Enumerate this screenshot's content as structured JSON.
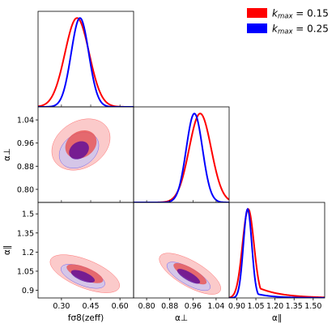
{
  "chart_data": {
    "type": "corner",
    "parameters": [
      {
        "id": "fs8",
        "label": "fσ8(zeff)",
        "range": [
          0.18,
          0.67
        ],
        "ticks": [
          "0.30",
          "0.45",
          "0.60"
        ],
        "tick_values": [
          0.3,
          0.45,
          0.6
        ]
      },
      {
        "id": "aperp",
        "label": "α⊥",
        "range": [
          0.755,
          1.085
        ],
        "ticks": [
          "0.80",
          "0.88",
          "0.96",
          "1.04"
        ],
        "tick_values": [
          0.8,
          0.88,
          0.96,
          1.04
        ]
      },
      {
        "id": "apar",
        "label": "α∥",
        "range": [
          0.84,
          1.59
        ],
        "ticks": [
          "0.90",
          "1.05",
          "1.20",
          "1.35",
          "1.50"
        ],
        "tick_values": [
          0.9,
          1.05,
          1.2,
          1.35,
          1.5
        ]
      }
    ],
    "y_ticks": {
      "aperp": [
        "1.04",
        "0.96",
        "0.88",
        "0.80"
      ],
      "apar": [
        "1.5",
        "1.35",
        "1.2",
        "1.05",
        "0.9"
      ]
    },
    "y_tick_values": {
      "aperp": [
        1.04,
        0.96,
        0.88,
        0.8
      ],
      "apar": [
        1.5,
        1.35,
        1.2,
        1.05,
        0.9
      ]
    },
    "series": [
      {
        "name": "k_max = 0.15",
        "legend_main": "k",
        "legend_sub": "max",
        "legend_value": " = 0.15",
        "color": "#ff0000",
        "fill_outer": "#fbc4c4",
        "fill_inner": "#e85858",
        "marginals": {
          "fs8": {
            "mean": 0.38,
            "sigma": 0.062
          },
          "aperp": {
            "mean": 0.985,
            "sigma": 0.038
          },
          "apar": {
            "mean": 0.99,
            "sigma": 0.045,
            "skew_tail": 0.18
          }
        },
        "contours": {
          "fs8_aperp": {
            "cx": 0.4,
            "cy": 0.955,
            "rx68": 0.085,
            "ry68": 0.045,
            "rx95": 0.16,
            "ry95": 0.08,
            "angle": 32
          },
          "fs8_apar": {
            "cx": 0.42,
            "cy": 1.03,
            "rx68": 0.1,
            "ry68": 0.05,
            "rx95": 0.19,
            "ry95": 0.11,
            "angle": -22
          },
          "aperp_apar": {
            "cx": 0.95,
            "cy": 1.03,
            "rx68": 0.065,
            "ry68": 0.045,
            "rx95": 0.12,
            "ry95": 0.1,
            "angle": -30
          }
        }
      },
      {
        "name": "k_max = 0.25",
        "legend_main": "k",
        "legend_sub": "max",
        "legend_value": " = 0.25",
        "color": "#0000ff",
        "fill_outer": "#c8c4f2",
        "fill_inner": "#6a3cd0",
        "marginals": {
          "fs8": {
            "mean": 0.395,
            "sigma": 0.045
          },
          "aperp": {
            "mean": 0.965,
            "sigma": 0.028
          },
          "apar": {
            "mean": 0.985,
            "sigma": 0.033,
            "skew_tail": 0.08
          }
        },
        "contours": {
          "fs8_aperp": {
            "cx": 0.39,
            "cy": 0.935,
            "rx68": 0.055,
            "ry68": 0.028,
            "rx95": 0.11,
            "ry95": 0.055,
            "angle": 35
          },
          "fs8_apar": {
            "cx": 0.41,
            "cy": 1.01,
            "rx68": 0.065,
            "ry68": 0.035,
            "rx95": 0.12,
            "ry95": 0.07,
            "angle": -22
          },
          "aperp_apar": {
            "cx": 0.945,
            "cy": 1.01,
            "rx68": 0.045,
            "ry68": 0.032,
            "rx95": 0.085,
            "ry95": 0.065,
            "angle": -30
          }
        }
      }
    ],
    "overlap_fill": "#5a0a9a",
    "legend_placement": "top-right"
  }
}
